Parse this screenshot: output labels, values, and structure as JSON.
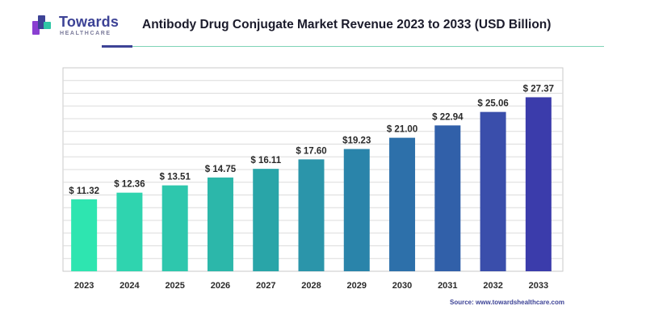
{
  "brand": {
    "name": "Towards",
    "tagline": "HEALTHCARE",
    "mark_colors": [
      "#8a3fd1",
      "#3d4396",
      "#2fc6a5"
    ]
  },
  "header": {
    "title": "Antibody Drug Conjugate Market Revenue 2023 to 2033 (USD Billion)"
  },
  "footer": {
    "source": "Source: www.towardshealthcare.com"
  },
  "chart_data": {
    "type": "bar",
    "title": "Antibody Drug Conjugate Market Revenue 2023 to 2033 (USD Billion)",
    "categories": [
      "2023",
      "2024",
      "2025",
      "2026",
      "2027",
      "2028",
      "2029",
      "2030",
      "2031",
      "2032",
      "2033"
    ],
    "values": [
      11.32,
      12.36,
      13.51,
      14.75,
      16.11,
      17.6,
      19.23,
      21.0,
      22.94,
      25.06,
      27.37
    ],
    "data_labels": [
      "$ 11.32",
      "$ 12.36",
      "$ 13.51",
      "$ 14.75",
      "$ 16.11",
      "$ 17.60",
      "$19.23",
      "$ 21.00",
      "$ 22.94",
      "$ 25.06",
      "$ 27.37"
    ],
    "xlabel": "",
    "ylabel": "",
    "ylim": [
      0,
      32
    ],
    "grid": true,
    "legend": "none",
    "colors": [
      "#2ee5b0",
      "#2fd4af",
      "#2ec7ad",
      "#2cb7aa",
      "#29a5a8",
      "#2b95aa",
      "#2a84aa",
      "#2d70aa",
      "#3160a9",
      "#3a4eab",
      "#3b3cab"
    ]
  }
}
